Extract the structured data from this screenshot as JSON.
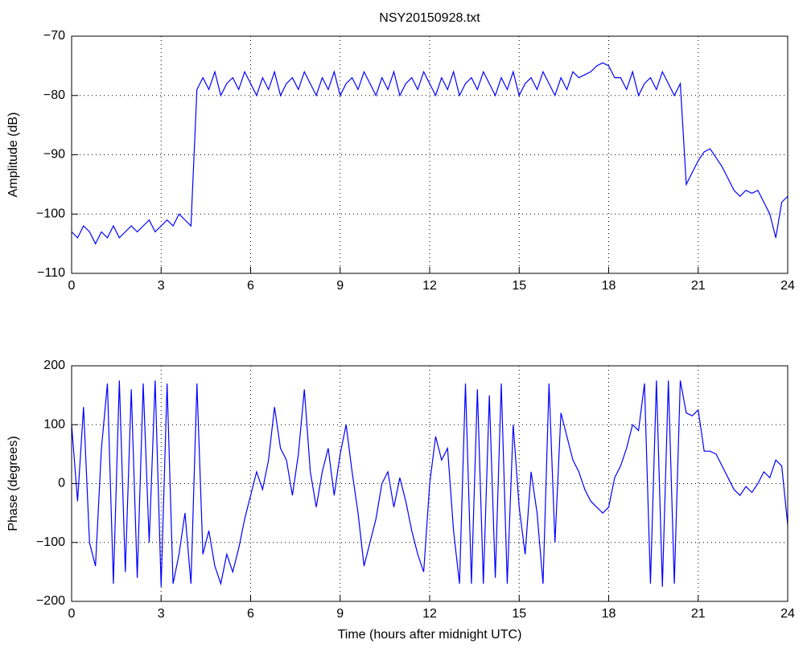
{
  "chart_data": [
    {
      "type": "line",
      "title": "NSY20150928.txt",
      "ylabel": "Amplitude (dB)",
      "color": "#0000ff",
      "grid": true,
      "xlim": [
        0,
        24
      ],
      "xticks": [
        0,
        3,
        6,
        9,
        12,
        15,
        18,
        21,
        24
      ],
      "ylim": [
        -110,
        -70
      ],
      "yticks": [
        {
          "value": -110,
          "label": "−110"
        },
        {
          "value": -100,
          "label": "−100"
        },
        {
          "value": -90,
          "label": "−90"
        },
        {
          "value": -80,
          "label": "−80"
        },
        {
          "value": -70,
          "label": "−70"
        }
      ],
      "x": [
        0,
        0.2,
        0.4,
        0.6,
        0.8,
        1,
        1.2,
        1.4,
        1.6,
        1.8,
        2,
        2.2,
        2.4,
        2.6,
        2.8,
        3,
        3.2,
        3.4,
        3.6,
        3.8,
        4,
        4.2,
        4.4,
        4.6,
        4.8,
        5,
        5.2,
        5.4,
        5.6,
        5.8,
        6,
        6.2,
        6.4,
        6.6,
        6.8,
        7,
        7.2,
        7.4,
        7.6,
        7.8,
        8,
        8.2,
        8.4,
        8.6,
        8.8,
        9,
        9.2,
        9.4,
        9.6,
        9.8,
        10,
        10.2,
        10.4,
        10.6,
        10.8,
        11,
        11.2,
        11.4,
        11.6,
        11.8,
        12,
        12.2,
        12.4,
        12.6,
        12.8,
        13,
        13.2,
        13.4,
        13.6,
        13.8,
        14,
        14.2,
        14.4,
        14.6,
        14.8,
        15,
        15.2,
        15.4,
        15.6,
        15.8,
        16,
        16.2,
        16.4,
        16.6,
        16.8,
        17,
        17.2,
        17.4,
        17.6,
        17.8,
        18,
        18.2,
        18.4,
        18.6,
        18.8,
        19,
        19.2,
        19.4,
        19.6,
        19.8,
        20,
        20.2,
        20.4,
        20.6,
        20.8,
        21,
        21.2,
        21.4,
        21.6,
        21.8,
        22,
        22.2,
        22.4,
        22.6,
        22.8,
        23,
        23.2,
        23.4,
        23.6,
        23.8,
        24
      ],
      "values": [
        -103,
        -104,
        -102,
        -103,
        -105,
        -103,
        -104,
        -102,
        -104,
        -103,
        -102,
        -103,
        -102,
        -101,
        -103,
        -102,
        -101,
        -102,
        -100,
        -101,
        -102,
        -79,
        -77,
        -79,
        -76,
        -80,
        -78,
        -77,
        -79,
        -76,
        -78,
        -80,
        -77,
        -79,
        -76,
        -80,
        -78,
        -77,
        -79,
        -76,
        -78,
        -80,
        -77,
        -79,
        -76,
        -80,
        -78,
        -77,
        -79,
        -76,
        -78,
        -80,
        -77,
        -79,
        -76,
        -80,
        -78,
        -77,
        -79,
        -76,
        -78,
        -80,
        -77,
        -79,
        -76,
        -80,
        -78,
        -77,
        -79,
        -76,
        -78,
        -80,
        -77,
        -79,
        -76,
        -80,
        -78,
        -77,
        -79,
        -76,
        -78,
        -80,
        -77,
        -79,
        -76,
        -77,
        -76.5,
        -76,
        -75,
        -74.5,
        -75,
        -77,
        -77,
        -79,
        -76,
        -80,
        -78,
        -77,
        -79,
        -76,
        -78,
        -80,
        -78,
        -95,
        -93,
        -91,
        -89.5,
        -89,
        -90.5,
        -92,
        -94,
        -96,
        -97,
        -96,
        -96.5,
        -96,
        -98,
        -100,
        -104,
        -98,
        -97
      ]
    },
    {
      "type": "line",
      "ylabel": "Phase (degrees)",
      "xlabel": "Time (hours after midnight UTC)",
      "color": "#0000ff",
      "grid": true,
      "xlim": [
        0,
        24
      ],
      "xticks": [
        0,
        3,
        6,
        9,
        12,
        15,
        18,
        21,
        24
      ],
      "ylim": [
        -200,
        200
      ],
      "yticks": [
        {
          "value": -200,
          "label": "−200"
        },
        {
          "value": -100,
          "label": "−100"
        },
        0,
        100,
        200
      ],
      "x": [
        0,
        0.2,
        0.4,
        0.6,
        0.8,
        1,
        1.2,
        1.4,
        1.6,
        1.8,
        2,
        2.2,
        2.4,
        2.6,
        2.8,
        3,
        3.2,
        3.4,
        3.6,
        3.8,
        4,
        4.2,
        4.4,
        4.6,
        4.8,
        5,
        5.2,
        5.4,
        5.6,
        5.8,
        6,
        6.2,
        6.4,
        6.6,
        6.8,
        7,
        7.2,
        7.4,
        7.6,
        7.8,
        8,
        8.2,
        8.4,
        8.6,
        8.8,
        9,
        9.2,
        9.4,
        9.6,
        9.8,
        10,
        10.2,
        10.4,
        10.6,
        10.8,
        11,
        11.2,
        11.4,
        11.6,
        11.8,
        12,
        12.2,
        12.4,
        12.6,
        12.8,
        13,
        13.2,
        13.4,
        13.6,
        13.8,
        14,
        14.2,
        14.4,
        14.6,
        14.8,
        15,
        15.2,
        15.4,
        15.6,
        15.8,
        16,
        16.2,
        16.4,
        16.6,
        16.8,
        17,
        17.2,
        17.4,
        17.6,
        17.8,
        18,
        18.2,
        18.4,
        18.6,
        18.8,
        19,
        19.2,
        19.4,
        19.6,
        19.8,
        20,
        20.2,
        20.4,
        20.6,
        20.8,
        21,
        21.2,
        21.4,
        21.6,
        21.8,
        22,
        22.2,
        22.4,
        22.6,
        22.8,
        23,
        23.2,
        23.4,
        23.6,
        23.8,
        24
      ],
      "values": [
        100,
        -30,
        130,
        -100,
        -140,
        60,
        170,
        -170,
        175,
        -150,
        160,
        -160,
        170,
        -100,
        175,
        -175,
        170,
        -170,
        -120,
        -50,
        -170,
        170,
        -120,
        -80,
        -140,
        -170,
        -120,
        -150,
        -110,
        -60,
        -20,
        20,
        -10,
        40,
        130,
        60,
        40,
        -20,
        50,
        160,
        20,
        -40,
        20,
        60,
        -20,
        50,
        100,
        20,
        -50,
        -140,
        -100,
        -60,
        0,
        20,
        -40,
        10,
        -30,
        -80,
        -120,
        -150,
        0,
        80,
        40,
        60,
        -80,
        -170,
        170,
        -170,
        160,
        -170,
        150,
        -160,
        170,
        -170,
        100,
        -40,
        -120,
        20,
        -50,
        -170,
        170,
        -100,
        120,
        80,
        40,
        20,
        -10,
        -30,
        -40,
        -50,
        -40,
        10,
        30,
        60,
        100,
        90,
        170,
        -170,
        175,
        -175,
        175,
        -170,
        175,
        120,
        115,
        125,
        55,
        55,
        50,
        30,
        10,
        -10,
        -20,
        -5,
        -15,
        0,
        20,
        10,
        40,
        30,
        -70
      ]
    }
  ]
}
